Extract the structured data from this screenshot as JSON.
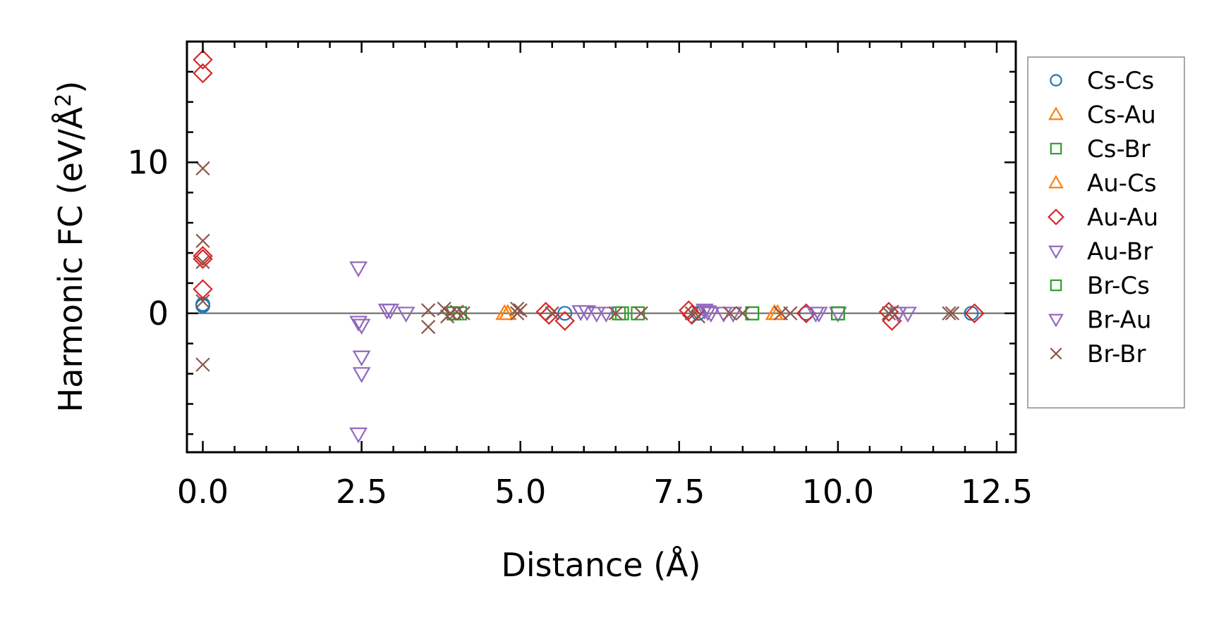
{
  "chart_data": {
    "type": "scatter",
    "title": "",
    "xlabel": "Distance (Å)",
    "ylabel_main": "Harmonic FC (eV/Å",
    "ylabel_sup": "2",
    "ylabel_tail": ")",
    "xlim": [
      -0.25,
      12.8
    ],
    "ylim": [
      -9.2,
      18
    ],
    "xticks": [
      0.0,
      2.5,
      5.0,
      7.5,
      10.0,
      12.5
    ],
    "xtick_labels": [
      "0.0",
      "2.5",
      "5.0",
      "7.5",
      "10.0",
      "12.5"
    ],
    "yticks": [
      0,
      10
    ],
    "ytick_labels": [
      "0",
      "10"
    ],
    "zero_line": true,
    "legend_position": "right",
    "series": [
      {
        "name": "Cs-Cs",
        "marker": "circle",
        "color": "#1f77b4",
        "points": [
          [
            0,
            0.5
          ],
          [
            0,
            0.6
          ],
          [
            5.7,
            0
          ],
          [
            7.8,
            0
          ],
          [
            9.5,
            0
          ],
          [
            12.1,
            0
          ]
        ]
      },
      {
        "name": "Cs-Au",
        "marker": "triangle-up",
        "color": "#ff7f0e",
        "points": [
          [
            4.75,
            0
          ],
          [
            4.8,
            0
          ],
          [
            9.0,
            0
          ],
          [
            9.05,
            0
          ]
        ]
      },
      {
        "name": "Cs-Br",
        "marker": "square",
        "color": "#2ca02c",
        "points": [
          [
            3.95,
            0
          ],
          [
            4.05,
            0
          ],
          [
            6.55,
            0
          ],
          [
            6.85,
            0
          ],
          [
            8.65,
            0
          ],
          [
            10.0,
            0
          ]
        ]
      },
      {
        "name": "Au-Cs",
        "marker": "triangle-up",
        "color": "#ff7f0e",
        "points": [
          [
            4.8,
            0
          ],
          [
            9.0,
            0
          ]
        ]
      },
      {
        "name": "Au-Au",
        "marker": "diamond",
        "color": "#d62728",
        "points": [
          [
            0,
            16.8
          ],
          [
            0,
            15.9
          ],
          [
            0,
            3.8
          ],
          [
            0,
            3.6
          ],
          [
            0,
            1.6
          ],
          [
            5.4,
            0.1
          ],
          [
            5.45,
            -0.1
          ],
          [
            5.7,
            -0.5
          ],
          [
            7.65,
            0.2
          ],
          [
            7.7,
            -0.1
          ],
          [
            9.5,
            0
          ],
          [
            10.8,
            0.1
          ],
          [
            10.85,
            -0.5
          ],
          [
            12.15,
            0
          ]
        ]
      },
      {
        "name": "Au-Br",
        "marker": "triangle-down",
        "color": "#9467bd",
        "points": [
          [
            2.45,
            3
          ],
          [
            2.45,
            -0.6
          ],
          [
            2.5,
            -0.8
          ],
          [
            2.5,
            -2.9
          ],
          [
            2.5,
            -4
          ],
          [
            2.45,
            -8
          ],
          [
            2.95,
            0.2
          ],
          [
            3.2,
            0
          ],
          [
            5.95,
            0.1
          ],
          [
            6.05,
            0.1
          ],
          [
            6.2,
            0
          ],
          [
            6.35,
            0
          ],
          [
            7.9,
            0.2
          ],
          [
            8.0,
            0
          ],
          [
            8.2,
            0
          ],
          [
            8.35,
            0
          ],
          [
            9.7,
            0
          ],
          [
            10.0,
            0
          ],
          [
            10.95,
            0
          ],
          [
            11.1,
            0
          ]
        ]
      },
      {
        "name": "Br-Cs",
        "marker": "square",
        "color": "#2ca02c",
        "points": [
          [
            3.95,
            0
          ],
          [
            6.6,
            0
          ],
          [
            8.65,
            0
          ],
          [
            10.0,
            0
          ]
        ]
      },
      {
        "name": "Br-Au",
        "marker": "triangle-down",
        "color": "#9467bd",
        "points": [
          [
            2.9,
            0.2
          ],
          [
            5.95,
            0.1
          ],
          [
            7.95,
            0.1
          ],
          [
            9.65,
            0
          ],
          [
            10.95,
            0
          ]
        ]
      },
      {
        "name": "Br-Br",
        "marker": "x",
        "color": "#8c564b",
        "points": [
          [
            0,
            9.6
          ],
          [
            0,
            4.8
          ],
          [
            0,
            3.4
          ],
          [
            0,
            0.8
          ],
          [
            0,
            -3.4
          ],
          [
            3.55,
            0.2
          ],
          [
            3.55,
            -0.9
          ],
          [
            3.8,
            0.3
          ],
          [
            3.85,
            -0.2
          ],
          [
            3.9,
            0
          ],
          [
            4.0,
            0.1
          ],
          [
            4.1,
            0
          ],
          [
            4.95,
            0.3
          ],
          [
            4.95,
            0
          ],
          [
            5.0,
            0.2
          ],
          [
            5.5,
            0
          ],
          [
            6.5,
            0
          ],
          [
            6.9,
            0
          ],
          [
            7.7,
            0
          ],
          [
            7.8,
            -0.2
          ],
          [
            8.3,
            0
          ],
          [
            8.5,
            0
          ],
          [
            9.1,
            0
          ],
          [
            9.25,
            0
          ],
          [
            10.8,
            0
          ],
          [
            10.85,
            0.1
          ],
          [
            11.75,
            0
          ],
          [
            11.8,
            0
          ]
        ]
      }
    ]
  },
  "colors": {
    "axis": "#000000",
    "zero_line": "#808080",
    "legend_border": "#8a8a8a"
  }
}
